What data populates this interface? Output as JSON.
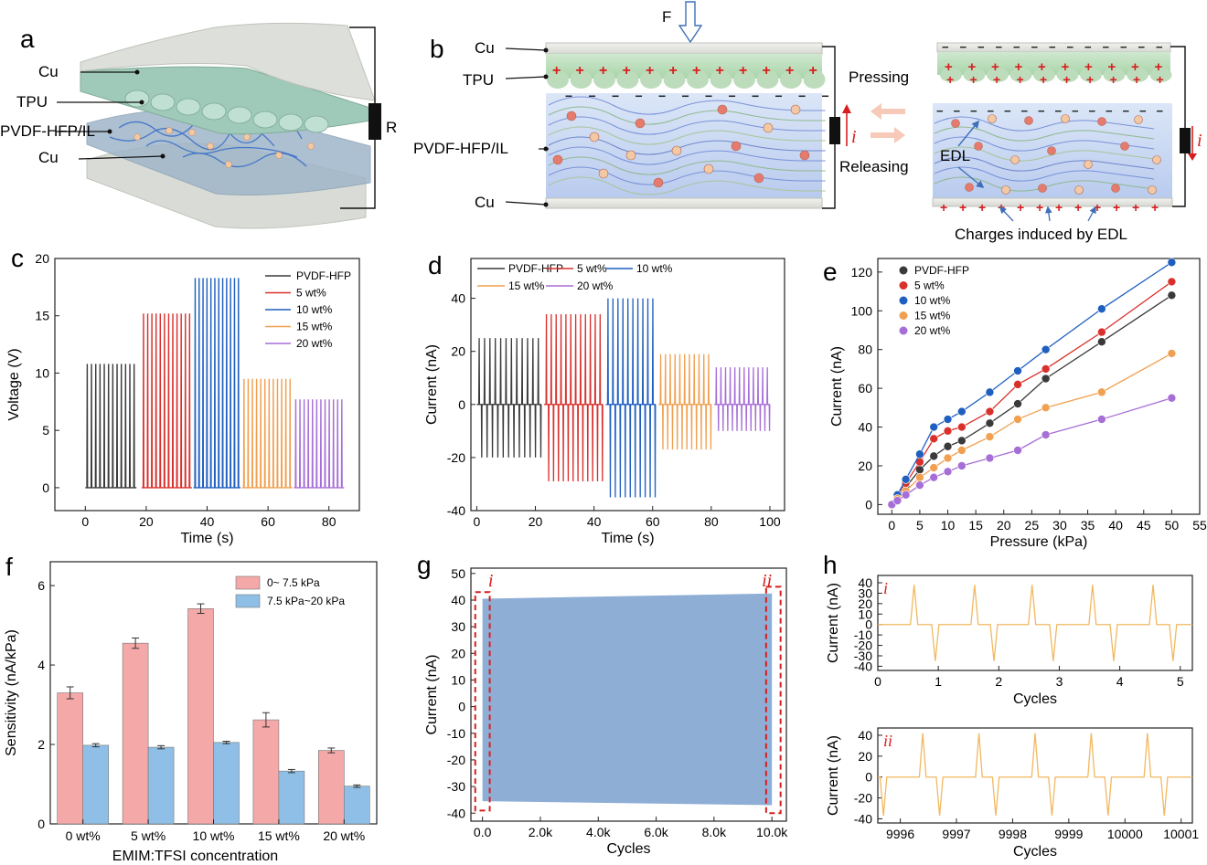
{
  "figure": {
    "panel_a": {
      "label": "a",
      "layers": [
        "Cu",
        "TPU",
        "PVDF-HFP/IL",
        "Cu"
      ],
      "resistor": "R"
    },
    "panel_b": {
      "label": "b",
      "force": "F",
      "layers": [
        "Cu",
        "TPU",
        "PVDF-HFP/IL",
        "Cu"
      ],
      "pressing": "Pressing",
      "releasing": "Releasing",
      "current": "i",
      "edl": "EDL",
      "caption": "Charges induced by EDL"
    }
  },
  "colors": {
    "PVDF-HFP": "#3a3a3a",
    "5 wt%": "#d9302c",
    "10 wt%": "#1f5fc0",
    "15 wt%": "#f0a050",
    "20 wt%": "#a66ed6",
    "pink": "#f4a8a8",
    "blue": "#8fbfe6",
    "fill_g": "#8eaed6",
    "dashed": "#d81e1e",
    "trace_h": "#f2b860"
  },
  "chart_data": [
    {
      "panel": "c",
      "type": "line",
      "title": "",
      "xlabel": "Time (s)",
      "ylabel": "Voltage (V)",
      "xlim": [
        -10,
        90
      ],
      "ylim": [
        -2,
        20
      ],
      "xticks": [
        "0",
        "20",
        "40",
        "60",
        "80"
      ],
      "yticks": [
        "0",
        "5",
        "10",
        "15",
        "20"
      ],
      "legend": [
        "PVDF-HFP",
        "5 wt%",
        "10 wt%",
        "15 wt%",
        "20 wt%"
      ],
      "series": [
        {
          "name": "PVDF-HFP",
          "t_start": 0,
          "t_end": 16.8,
          "peak": 10.8,
          "pulses": 12
        },
        {
          "name": "5 wt%",
          "t_start": 18.5,
          "t_end": 35,
          "peak": 15.2,
          "pulses": 12
        },
        {
          "name": "10 wt%",
          "t_start": 35.5,
          "t_end": 51,
          "peak": 18.3,
          "pulses": 12
        },
        {
          "name": "15 wt%",
          "t_start": 51.5,
          "t_end": 68,
          "peak": 9.5,
          "pulses": 12
        },
        {
          "name": "20 wt%",
          "t_start": 68.5,
          "t_end": 85,
          "peak": 7.7,
          "pulses": 12
        }
      ]
    },
    {
      "panel": "d",
      "type": "line",
      "title": "",
      "xlabel": "Time (s)",
      "ylabel": "Current (nA)",
      "xlim": [
        -2,
        105
      ],
      "ylim": [
        -40,
        55
      ],
      "xticks": [
        "0",
        "20",
        "40",
        "60",
        "80",
        "100"
      ],
      "yticks": [
        "-40",
        "-20",
        "0",
        "20",
        "40"
      ],
      "legend": [
        "PVDF-HFP",
        "5 wt%",
        "10 wt%",
        "15 wt%",
        "20 wt%"
      ],
      "series": [
        {
          "name": "PVDF-HFP",
          "t_start": 0,
          "t_end": 22,
          "peak": 25,
          "trough": -20,
          "pulses": 12
        },
        {
          "name": "5 wt%",
          "t_start": 23,
          "t_end": 43,
          "peak": 34,
          "trough": -29,
          "pulses": 12
        },
        {
          "name": "10 wt%",
          "t_start": 44,
          "t_end": 61,
          "peak": 40,
          "trough": -35,
          "pulses": 10
        },
        {
          "name": "15 wt%",
          "t_start": 62,
          "t_end": 80,
          "peak": 19,
          "trough": -17,
          "pulses": 11
        },
        {
          "name": "20 wt%",
          "t_start": 81,
          "t_end": 100,
          "peak": 14,
          "trough": -10,
          "pulses": 12
        }
      ]
    },
    {
      "panel": "e",
      "type": "scatter",
      "title": "",
      "xlabel": "Pressure (kPa)",
      "ylabel": "Current (nA)",
      "xlim": [
        -2.5,
        55
      ],
      "ylim": [
        -5,
        127
      ],
      "xticks": [
        "0",
        "5",
        "10",
        "15",
        "20",
        "25",
        "30",
        "35",
        "40",
        "45",
        "50",
        "55"
      ],
      "yticks": [
        "0",
        "20",
        "40",
        "60",
        "80",
        "100",
        "120"
      ],
      "x": [
        0,
        1,
        2.5,
        5,
        7.5,
        10,
        12.5,
        17.5,
        22.5,
        27.5,
        37.5,
        50
      ],
      "series": [
        {
          "name": "PVDF-HFP",
          "values": [
            0,
            4,
            9,
            18,
            25,
            30,
            33,
            42,
            52,
            65,
            84,
            108
          ]
        },
        {
          "name": "5 wt%",
          "values": [
            0,
            5,
            11,
            22,
            34,
            38,
            40,
            48,
            62,
            70,
            89,
            115
          ]
        },
        {
          "name": "10 wt%",
          "values": [
            0,
            5,
            13,
            26,
            40,
            44,
            48,
            58,
            69,
            80,
            101,
            125
          ]
        },
        {
          "name": "15 wt%",
          "values": [
            0,
            3,
            7,
            14,
            19,
            24,
            28,
            35,
            44,
            50,
            58,
            78
          ]
        },
        {
          "name": "20 wt%",
          "values": [
            0,
            2,
            5,
            10,
            14,
            17,
            20,
            24,
            28,
            36,
            44,
            55
          ]
        }
      ]
    },
    {
      "panel": "f",
      "type": "bar",
      "title": "",
      "xlabel": "EMIM:TFSI concentration",
      "ylabel": "Sensitivity (nA/kPa)",
      "ylim": [
        0,
        6.6
      ],
      "yticks": [
        "0",
        "2",
        "4",
        "6"
      ],
      "categories": [
        "0 wt%",
        "5 wt%",
        "10 wt%",
        "15 wt%",
        "20 wt%"
      ],
      "series": [
        {
          "name": "0~ 7.5 kPa",
          "values": [
            3.3,
            4.55,
            5.42,
            2.62,
            1.85
          ],
          "errors": [
            0.15,
            0.13,
            0.12,
            0.18,
            0.06
          ]
        },
        {
          "name": "7.5 kPa~20 kPa",
          "values": [
            1.98,
            1.93,
            2.05,
            1.33,
            0.95
          ],
          "errors": [
            0.04,
            0.04,
            0.03,
            0.04,
            0.03
          ]
        }
      ]
    },
    {
      "panel": "g",
      "type": "area",
      "title": "",
      "xlabel": "Cycles",
      "ylabel": "Current (nA)",
      "xlim": [
        -400,
        10500
      ],
      "ylim": [
        -43,
        52
      ],
      "xticks": [
        "0.0",
        "2.0k",
        "4.0k",
        "6.0k",
        "8.0k",
        "10.0k"
      ],
      "yticks": [
        "-40",
        "-30",
        "-20",
        "-10",
        "0",
        "10",
        "20",
        "30",
        "40",
        "50"
      ],
      "envelope": {
        "upper_start": 40.5,
        "upper_end": 42.5,
        "lower_start": -35.5,
        "lower_end": -37
      },
      "annotations": [
        "i",
        "ii"
      ]
    },
    {
      "panel": "h-i",
      "type": "line",
      "title": "",
      "xlabel": "Cycles",
      "ylabel": "Current (nA)",
      "xlim": [
        0,
        5.2
      ],
      "ylim": [
        -44,
        47
      ],
      "xticks": [
        "0",
        "1",
        "2",
        "3",
        "4",
        "5"
      ],
      "yticks": [
        "-40",
        "-30",
        "-20",
        "-10",
        "0",
        "10",
        "20",
        "30",
        "40"
      ],
      "peaks_x": [
        0.6,
        1.6,
        2.55,
        3.55,
        4.55
      ],
      "troughs_x": [
        0.95,
        1.92,
        2.9,
        3.9,
        4.88
      ],
      "peak": 38,
      "trough": -35,
      "annotation": "i"
    },
    {
      "panel": "h-ii",
      "type": "line",
      "title": "",
      "xlabel": "Cycles",
      "ylabel": "Current (nA)",
      "xlim": [
        9995.6,
        10001.2
      ],
      "ylim": [
        -44,
        47
      ],
      "xticks": [
        "9996",
        "9997",
        "9998",
        "9999",
        "10000",
        "10001"
      ],
      "yticks": [
        "-40",
        "-20",
        "0",
        "20",
        "40"
      ],
      "peaks_x": [
        9996.4,
        9997.4,
        9998.4,
        9999.4,
        10000.4
      ],
      "troughs_x": [
        9995.7,
        9996.7,
        9997.7,
        9998.7,
        9999.7,
        10000.7
      ],
      "peak": 42,
      "trough": -37,
      "annotation": "ii"
    }
  ],
  "panel_labels": {
    "c": "c",
    "d": "d",
    "e": "e",
    "f": "f",
    "g": "g",
    "h": "h"
  }
}
